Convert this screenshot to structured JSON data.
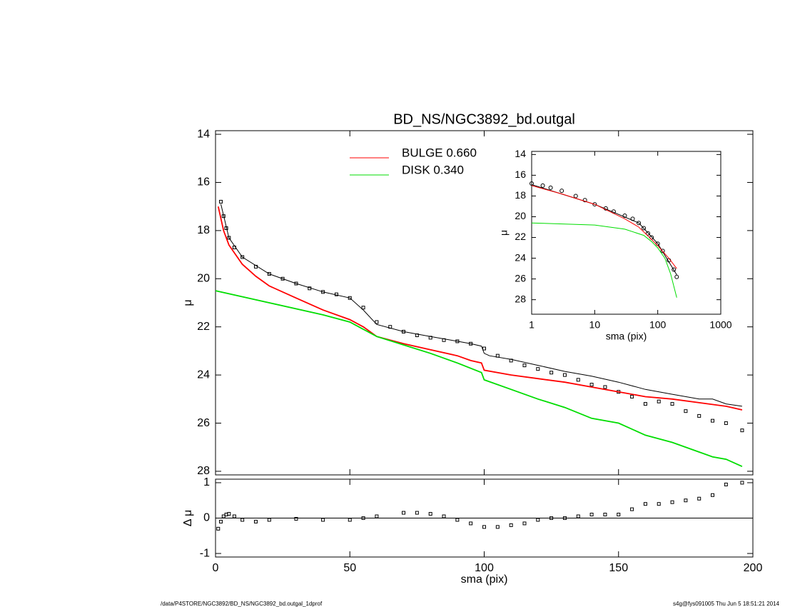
{
  "chart_data": [
    {
      "type": "line",
      "title": "BD_NS/NGC3892_bd.outgal",
      "ylabel": "μ",
      "xlim": [
        0,
        200
      ],
      "xticks": [
        0,
        50,
        100,
        150,
        200
      ],
      "ylim": [
        13.85,
        28.15
      ],
      "yreverse": true,
      "yticks": [
        14,
        16,
        18,
        20,
        22,
        24,
        26,
        28
      ],
      "legend": "top",
      "series": [
        {
          "color": "#000000",
          "marker": "square",
          "x": [
            2,
            3,
            4,
            5,
            7,
            10,
            15,
            20,
            25,
            30,
            35,
            40,
            45,
            50,
            55,
            60,
            65,
            70,
            75,
            80,
            85,
            90,
            95,
            100,
            105,
            110,
            115,
            120,
            125,
            130,
            135,
            140,
            145,
            150,
            155,
            160,
            165,
            170,
            175,
            180,
            185,
            190,
            196
          ],
          "values": [
            16.8,
            17.4,
            17.9,
            18.3,
            18.7,
            19.1,
            19.5,
            19.8,
            20.0,
            20.2,
            20.4,
            20.55,
            20.65,
            20.8,
            21.2,
            21.8,
            22.0,
            22.2,
            22.35,
            22.45,
            22.55,
            22.6,
            22.7,
            22.9,
            23.2,
            23.4,
            23.6,
            23.75,
            23.9,
            24.0,
            24.2,
            24.4,
            24.5,
            24.7,
            24.9,
            25.2,
            25.1,
            25.2,
            25.5,
            25.7,
            25.9,
            26.0,
            26.3
          ]
        },
        {
          "color": "#000000",
          "x": [
            2,
            5,
            10,
            20,
            30,
            40,
            50,
            55,
            60,
            70,
            80,
            90,
            95,
            99,
            100,
            102,
            110,
            120,
            130,
            140,
            150,
            160,
            170,
            180,
            185,
            190,
            196
          ],
          "values": [
            16.9,
            18.3,
            19.1,
            19.8,
            20.2,
            20.55,
            20.8,
            21.3,
            21.9,
            22.2,
            22.4,
            22.6,
            22.7,
            22.8,
            23.1,
            23.2,
            23.35,
            23.6,
            23.85,
            24.05,
            24.3,
            24.6,
            24.8,
            25.0,
            25.0,
            25.2,
            25.3
          ]
        },
        {
          "name": "BULGE  0.660",
          "color": "#ff0000",
          "x": [
            1,
            3,
            5,
            10,
            15,
            20,
            30,
            40,
            50,
            55,
            60,
            70,
            80,
            90,
            95,
            99,
            100,
            110,
            120,
            130,
            140,
            150,
            160,
            170,
            180,
            190,
            196
          ],
          "values": [
            17.0,
            18.0,
            18.6,
            19.4,
            19.9,
            20.3,
            20.8,
            21.3,
            21.7,
            22.0,
            22.4,
            22.7,
            22.95,
            23.2,
            23.4,
            23.5,
            23.8,
            24.0,
            24.15,
            24.3,
            24.5,
            24.7,
            24.9,
            25.0,
            25.15,
            25.3,
            25.45
          ]
        },
        {
          "name": "DISK  0.340",
          "color": "#00dd00",
          "x": [
            0,
            20,
            40,
            50,
            60,
            70,
            80,
            90,
            99,
            100,
            110,
            120,
            130,
            140,
            150,
            160,
            170,
            180,
            185,
            190,
            196
          ],
          "values": [
            20.5,
            21.0,
            21.5,
            21.8,
            22.4,
            22.75,
            23.1,
            23.5,
            23.9,
            24.2,
            24.6,
            25.0,
            25.35,
            25.8,
            26.0,
            26.5,
            26.8,
            27.2,
            27.4,
            27.5,
            27.8
          ]
        }
      ]
    },
    {
      "type": "line",
      "ylabel": "Δ μ",
      "xlabel": "sma (pix)",
      "xlim": [
        0,
        200
      ],
      "xticks": [
        0,
        50,
        100,
        150,
        200
      ],
      "ylim": [
        -1.1,
        1.1
      ],
      "yticks": [
        -1,
        0,
        1
      ],
      "hline": 0,
      "series": [
        {
          "color": "#000000",
          "marker": "square",
          "x": [
            1,
            2,
            3,
            4,
            5,
            7,
            10,
            15,
            20,
            30,
            40,
            50,
            55,
            60,
            70,
            75,
            80,
            85,
            90,
            95,
            100,
            105,
            110,
            115,
            120,
            125,
            130,
            135,
            140,
            145,
            150,
            155,
            160,
            165,
            170,
            175,
            180,
            185,
            190,
            196
          ],
          "values": [
            -0.3,
            -0.1,
            0.05,
            0.1,
            0.12,
            0.05,
            -0.05,
            -0.1,
            -0.05,
            -0.02,
            -0.05,
            -0.05,
            0,
            0.05,
            0.15,
            0.15,
            0.12,
            0.05,
            -0.05,
            -0.15,
            -0.25,
            -0.25,
            -0.2,
            -0.15,
            -0.05,
            0,
            0,
            0.05,
            0.1,
            0.1,
            0.1,
            0.25,
            0.4,
            0.4,
            0.45,
            0.5,
            0.55,
            0.65,
            0.95,
            1.0
          ]
        }
      ]
    },
    {
      "type": "line",
      "ylabel": "μ",
      "xlabel": "sma (pix)",
      "xlog": true,
      "xlim": [
        1,
        1000
      ],
      "xticks": [
        1,
        10,
        100,
        1000
      ],
      "ylim": [
        13.7,
        29.4
      ],
      "yreverse": true,
      "yticks": [
        14,
        16,
        18,
        20,
        22,
        24,
        26,
        28
      ],
      "series": [
        {
          "color": "#000000",
          "marker": "circle",
          "x": [
            1,
            1.5,
            2,
            3,
            5,
            7,
            10,
            15,
            20,
            30,
            40,
            50,
            60,
            70,
            80,
            100,
            120,
            150,
            180,
            200
          ],
          "values": [
            16.8,
            17.0,
            17.2,
            17.5,
            18.0,
            18.4,
            18.8,
            19.2,
            19.5,
            19.9,
            20.2,
            20.6,
            21.1,
            21.6,
            22.0,
            22.6,
            23.3,
            24.2,
            25.1,
            25.8
          ]
        },
        {
          "color": "#000000",
          "x": [
            1,
            10,
            50,
            100,
            200
          ],
          "values": [
            16.9,
            18.8,
            20.6,
            22.6,
            25.6
          ]
        },
        {
          "color": "#ff0000",
          "x": [
            1,
            3,
            10,
            30,
            50,
            80,
            100,
            150,
            200
          ],
          "values": [
            17.0,
            17.8,
            18.8,
            20.2,
            21.0,
            22.2,
            22.8,
            24.0,
            25.0
          ]
        },
        {
          "color": "#00dd00",
          "x": [
            1,
            10,
            30,
            60,
            80,
            100,
            130,
            160,
            200
          ],
          "values": [
            20.6,
            20.8,
            21.2,
            21.8,
            22.4,
            23.0,
            24.0,
            25.5,
            27.8
          ]
        }
      ]
    }
  ],
  "footer": {
    "left": "/data/P4STORE/NGC3892/BD_NS/NGC3892_bd.outgal_1dprof",
    "right": "s4g@fys091005  Thu Jun  5 18:51:21 2014"
  }
}
